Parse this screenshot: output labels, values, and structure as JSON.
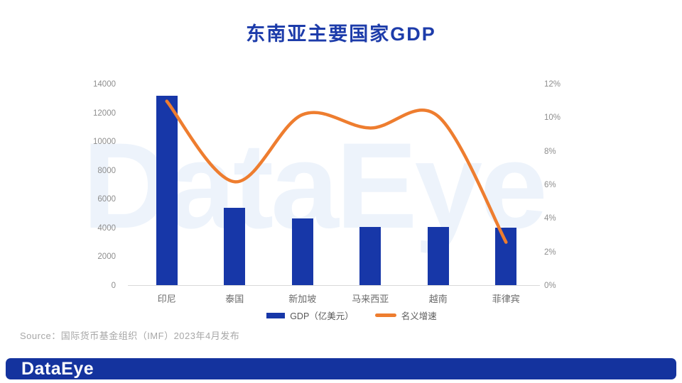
{
  "title": "东南亚主要国家GDP",
  "watermark": "DataEye",
  "footer_logo": "DataEye",
  "source": "Source：国际货币基金组织（IMF）2023年4月发布",
  "legend": [
    {
      "label": "GDP（亿美元）",
      "type": "bar"
    },
    {
      "label": "名义增速",
      "type": "line"
    }
  ],
  "colors": {
    "title_blue": "#1d3caa",
    "bar_blue": "#1737a8",
    "line_orange": "#ee7d2f",
    "footer_blue": "#14339e",
    "axis_label_gray": "#8e8e8e",
    "category_gray": "#6b6b6b",
    "legend_gray": "#595959",
    "source_gray": "#a7a7a7",
    "axis_line_gray": "#d9d9d9",
    "watermark_blue": "#edf3fb"
  },
  "chart_data": {
    "type": "bar",
    "title": "东南亚主要国家GDP",
    "categories": [
      "印尼",
      "泰国",
      "新加坡",
      "马来西亚",
      "越南",
      "菲律宾"
    ],
    "series": [
      {
        "name": "GDP（亿美元）",
        "type": "bar",
        "axis": "left",
        "values": [
          13190,
          5400,
          4670,
          4100,
          4090,
          4040
        ]
      },
      {
        "name": "名义增速",
        "type": "line",
        "axis": "right",
        "values": [
          11.0,
          6.2,
          10.2,
          9.4,
          10.1,
          2.6
        ],
        "unit": "%"
      }
    ],
    "left_axis": {
      "min": 0,
      "max": 14000,
      "step": 2000,
      "ticks": [
        "14000",
        "12000",
        "10000",
        "8000",
        "6000",
        "4000",
        "2000",
        "0"
      ]
    },
    "right_axis": {
      "min": 0,
      "max": 12,
      "step": 2,
      "ticks": [
        "12%",
        "10%",
        "8%",
        "6%",
        "4%",
        "2%",
        "0%"
      ]
    },
    "grid": false,
    "legend_position": "bottom",
    "line_smooth": true
  }
}
